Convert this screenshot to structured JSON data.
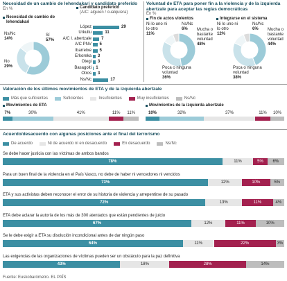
{
  "sections": [
    {
      "title": "Necesidad de un cambio de lehendakari y candidato preferido",
      "subtitle": "En %"
    },
    {
      "title": "Voluntad de ETA para poner fin a la violencia y de la izquierda abertzale para aceptar las reglas democráticas",
      "subtitle": "En %"
    },
    {
      "title": "Valoración de los últimos movimientos de ETA y de la izquierda abertzale"
    },
    {
      "title": "Acuerdo/desacuerdo con algunas posiciones ante el final del terrorismo"
    }
  ],
  "chart_data": [
    {
      "type": "pie",
      "title": "Necesidad de cambio de lehendakari",
      "categories": [
        "Sí",
        "No",
        "Ns/Nc"
      ],
      "values": [
        57,
        29,
        14
      ],
      "value_labels": [
        "57%",
        "29%",
        "14%"
      ],
      "colors": [
        "#9ccbd8",
        "#c9e2ea",
        "#eef5f7"
      ]
    },
    {
      "type": "bar",
      "title": "Candidato preferido",
      "subtitle": "(A/C: alguien / cualquiera)",
      "categories": [
        "López",
        "Urkullu",
        "A/C I. abertzale",
        "A/C PNV",
        "Ibarretxe",
        "Erkoreka",
        "Otegi",
        "Basagoiti",
        "Otros",
        "Ns/Nc"
      ],
      "values": [
        29,
        11,
        7,
        5,
        5,
        3,
        3,
        1,
        3,
        17
      ],
      "color": "#3c8fa3"
    },
    {
      "type": "pie",
      "title": "Fin de actos violentos",
      "categories": [
        "Mucha o bastante voluntad",
        "Poca o ninguna voluntad",
        "Ni lo uno ni lo otro",
        "Ns/Nc"
      ],
      "values": [
        48,
        36,
        11,
        6
      ],
      "value_labels": [
        "48%",
        "36%",
        "11%",
        "6%"
      ],
      "colors": [
        "#9ccbd8",
        "#c9e2ea",
        "#eef5f7",
        "#dcdcdc"
      ]
    },
    {
      "type": "pie",
      "title": "Integrarse en el sistema",
      "categories": [
        "Mucha o bastante voluntad",
        "Poca o ninguna voluntad",
        "Ni lo uno ni lo otro",
        "Ns/Nc"
      ],
      "values": [
        44,
        38,
        12,
        6
      ],
      "value_labels": [
        "44%",
        "38%",
        "12%",
        "6%"
      ],
      "colors": [
        "#9ccbd8",
        "#c9e2ea",
        "#eef5f7",
        "#dcdcdc"
      ]
    },
    {
      "type": "stacked",
      "categories": [
        "Movimientos de ETA",
        "Movimientos de la izquierda abertzale"
      ],
      "series": [
        {
          "name": "Más que suficientes",
          "color": "#3c8fa3",
          "values": [
            7,
            10
          ],
          "value_labels": [
            "7%",
            "10%"
          ]
        },
        {
          "name": "Suficientes",
          "color": "#9ccbd8",
          "values": [
            30,
            32
          ],
          "value_labels": [
            "30%",
            "32%"
          ]
        },
        {
          "name": "Insuficientes",
          "color": "#e6e6e6",
          "values": [
            41,
            37
          ],
          "value_labels": [
            "41%",
            "37%"
          ]
        },
        {
          "name": "Muy insuficientes",
          "color": "#a3214f",
          "values": [
            11,
            11
          ],
          "value_labels": [
            "11%",
            "11%"
          ]
        },
        {
          "name": "Ns/Nc",
          "color": "#bdbdbd",
          "values": [
            11,
            10
          ],
          "value_labels": [
            "11%",
            "10%"
          ]
        }
      ]
    },
    {
      "type": "stacked",
      "categories": [
        "Se debe hacer justicia con las víctimas de ambos bandos",
        "Para un buen final de la violencia en el País Vasco, no debe de haber ni vencedores ni vencidos",
        "ETA y sus activistas deben reconocer el error de su historia de violencia y arrepentirse de su pasado",
        "ETA debe aclarar la autoría de los más de 300 atentados que están pendientes de juicio",
        "Se le debe exigir a ETA su disolución incondicional antes de dar ningún paso",
        "Las exigencias de las organizaciones de víctimas pueden ser un obstáculo para la paz definitiva"
      ],
      "series": [
        {
          "name": "De acuerdo",
          "color": "#3c8fa3",
          "values": [
            78,
            73,
            72,
            67,
            64,
            43
          ],
          "value_labels": [
            "78%",
            "73%",
            "72%",
            "67%",
            "64%",
            "43%"
          ]
        },
        {
          "name": "Ni de acuerdo ni en desacuerdo",
          "color": "#e6e6e6",
          "values": [
            11,
            12,
            13,
            12,
            11,
            18
          ],
          "value_labels": [
            "11%",
            "12%",
            "13%",
            "12%",
            "11%",
            "18%"
          ]
        },
        {
          "name": "En desacuerdo",
          "color": "#a3214f",
          "values": [
            5,
            10,
            11,
            11,
            22,
            28
          ],
          "value_labels": [
            "5%",
            "10%",
            "11%",
            "11%",
            "22%",
            "28%"
          ]
        },
        {
          "name": "Ns/Nc",
          "color": "#bdbdbd",
          "values": [
            6,
            5,
            4,
            10,
            3,
            14
          ],
          "value_labels": [
            "6%",
            "5%",
            "4%",
            "10%",
            "3%",
            "14%"
          ]
        }
      ]
    }
  ],
  "source": "Fuente: Euskobarómetro. EL PAÍS"
}
